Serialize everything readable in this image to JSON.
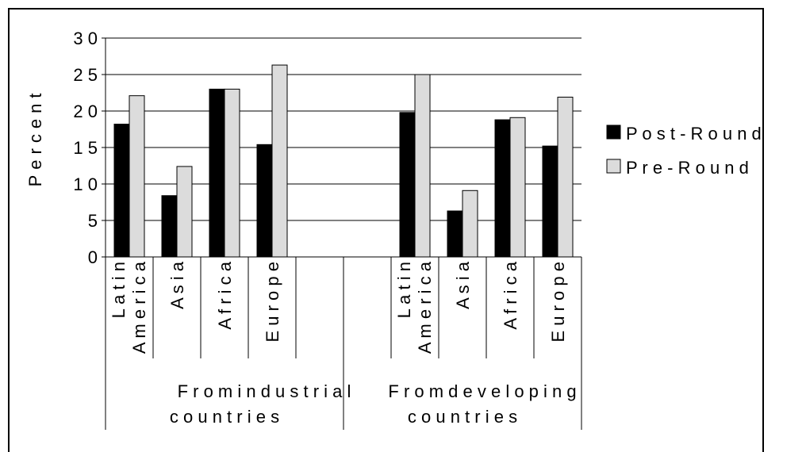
{
  "chart_data": {
    "type": "bar",
    "ylabel": "Percent",
    "ylim": [
      0,
      30
    ],
    "yticks": [
      0,
      5,
      10,
      15,
      20,
      25,
      30
    ],
    "ytick_labels": [
      "0",
      "5",
      "1 0",
      "1 5",
      "2 0",
      "2 5",
      "3 0"
    ],
    "grid": true,
    "legend_position": "right",
    "categories": [
      "Latin America",
      "Asia",
      "Africa",
      "Europe",
      "",
      "",
      "Latin America",
      "Asia",
      "Africa",
      "Europe"
    ],
    "category_labels": [
      [
        "L a t i n",
        "A m e r i c a"
      ],
      [
        "A s i a"
      ],
      [
        "A f r i c a"
      ],
      [
        "E u r o p e"
      ],
      [],
      [],
      [
        "L a t i n",
        "A m e r i c a"
      ],
      [
        "A s i a"
      ],
      [
        "A f r i c a"
      ],
      [
        "E u r o p e"
      ]
    ],
    "groups": [
      {
        "label": [
          "F r o m   i n d u s t r i a l",
          "c o u n t r i e s"
        ]
      },
      {
        "label": [
          "F r o m   d e v e l o p i n g",
          "c o u n t r i e s"
        ]
      }
    ],
    "series": [
      {
        "name": "P o s t - R o u n d",
        "color": "#000000",
        "values": [
          18.2,
          8.4,
          23.0,
          15.4,
          null,
          null,
          19.8,
          6.3,
          18.8,
          15.2
        ]
      },
      {
        "name": "P r e - R o u n d",
        "color": "#dcdcdc",
        "values": [
          22.1,
          12.4,
          23.0,
          26.3,
          null,
          null,
          25.0,
          9.1,
          19.1,
          21.9
        ]
      }
    ]
  }
}
